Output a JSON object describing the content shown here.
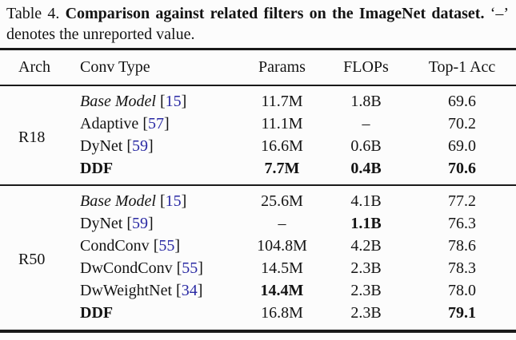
{
  "caption": {
    "label": "Table 4.",
    "bold": "Comparison against related filters on the ImageNet dataset.",
    "rest": "‘–’ denotes the unreported value."
  },
  "fmt": {
    "lb": "[",
    "rb": "]"
  },
  "colors": {
    "citation": "#2929a3",
    "text": "#141414",
    "rule": "#1a1a1a",
    "background": "#fcfcfc"
  },
  "table": {
    "headers": [
      "Arch",
      "Conv Type",
      "Params",
      "FLOPs",
      "Top-1 Acc"
    ],
    "groups": [
      {
        "arch": "R18",
        "rows": [
          {
            "conv": "Base Model",
            "cite": "15",
            "params": "11.7M",
            "flops": "1.8B",
            "acc": "69.6"
          },
          {
            "conv": "Adaptive",
            "cite": "57",
            "params": "11.1M",
            "flops": "–",
            "acc": "70.2"
          },
          {
            "conv": "DyNet",
            "cite": "59",
            "params": "16.6M",
            "flops": "0.6B",
            "acc": "69.0"
          },
          {
            "conv": "DDF",
            "cite": "",
            "params": "7.7M",
            "flops": "0.4B",
            "acc": "70.6"
          }
        ]
      },
      {
        "arch": "R50",
        "rows": [
          {
            "conv": "Base Model",
            "cite": "15",
            "params": "25.6M",
            "flops": "4.1B",
            "acc": "77.2"
          },
          {
            "conv": "DyNet",
            "cite": "59",
            "params": "–",
            "flops": "1.1B",
            "acc": "76.3"
          },
          {
            "conv": "CondConv",
            "cite": "55",
            "params": "104.8M",
            "flops": "4.2B",
            "acc": "78.6"
          },
          {
            "conv": "DwCondConv",
            "cite": "55",
            "params": "14.5M",
            "flops": "2.3B",
            "acc": "78.3"
          },
          {
            "conv": "DwWeightNet",
            "cite": "34",
            "params": "14.4M",
            "flops": "2.3B",
            "acc": "78.0"
          },
          {
            "conv": "DDF",
            "cite": "",
            "params": "16.8M",
            "flops": "2.3B",
            "acc": "79.1"
          }
        ]
      }
    ]
  }
}
